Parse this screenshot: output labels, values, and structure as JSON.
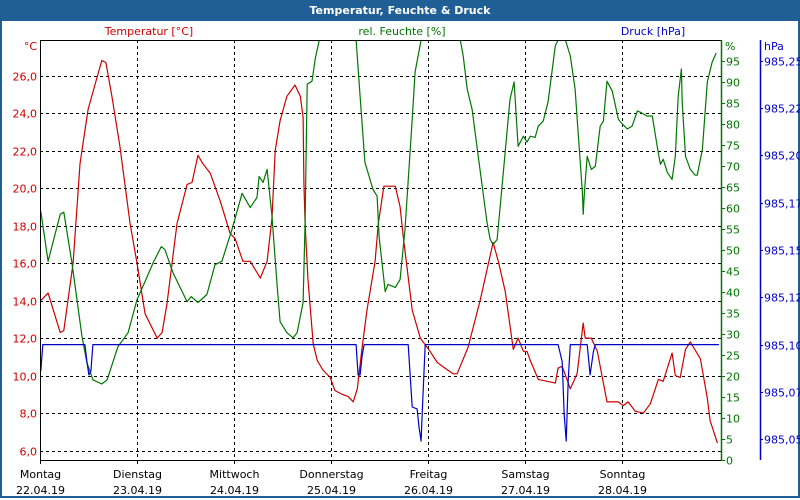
{
  "title": "Temperatur, Feuchte & Druck",
  "colors": {
    "temp": "#cc0000",
    "hum": "#007700",
    "press": "#0000cc",
    "title_bg": "#1f5f96"
  },
  "chart_data": {
    "type": "line",
    "title": "Temperatur, Feuchte & Druck",
    "x_unit": "hours since 22.04.19 00:00",
    "xlim": [
      0,
      168
    ],
    "days": [
      {
        "name": "Montag",
        "date": "22.04.19"
      },
      {
        "name": "Dienstag",
        "date": "23.04.19"
      },
      {
        "name": "Mittwoch",
        "date": "24.04.19"
      },
      {
        "name": "Donnerstag",
        "date": "25.04.19"
      },
      {
        "name": "Freitag",
        "date": "26.04.19"
      },
      {
        "name": "Samstag",
        "date": "27.04.19"
      },
      {
        "name": "Sonntag",
        "date": "28.04.19"
      }
    ],
    "grid": true,
    "axes": {
      "temp": {
        "label": "Temperatur [°C]",
        "unit": "°C",
        "ylim": [
          5.5,
          27.9
        ],
        "ticks": [
          "26,0",
          "24,0",
          "22,0",
          "20,0",
          "18,0",
          "16,0",
          "14,0",
          "12,0",
          "10,0",
          "8,0",
          "6,0"
        ],
        "tick_values": [
          26,
          24,
          22,
          20,
          18,
          16,
          14,
          12,
          10,
          8,
          6
        ]
      },
      "hum": {
        "label": "rel. Feuchte [%]",
        "unit": "%",
        "ylim": [
          0,
          100
        ],
        "ticks": [
          "95",
          "90",
          "85",
          "80",
          "75",
          "70",
          "65",
          "60",
          "55",
          "50",
          "45",
          "40",
          "35",
          "30",
          "25",
          "20",
          "15",
          "10",
          "5",
          "0"
        ],
        "tick_values": [
          95,
          90,
          85,
          80,
          75,
          70,
          65,
          60,
          55,
          50,
          45,
          40,
          35,
          30,
          25,
          20,
          15,
          10,
          5,
          0
        ]
      },
      "press": {
        "label": "Druck [hPa]",
        "unit": "hPa",
        "ylim": [
          985.039,
          985.261
        ],
        "ticks": [
          "985,25",
          "985,22",
          "985,20",
          "985,17",
          "985,15",
          "985,12",
          "985,10",
          "985,07",
          "985,05"
        ],
        "tick_values": [
          985.25,
          985.225,
          985.2,
          985.175,
          985.15,
          985.125,
          985.1,
          985.075,
          985.05
        ]
      }
    },
    "series": [
      {
        "name": "Temperatur",
        "axis": "temp",
        "points": [
          [
            0.2,
            14.0
          ],
          [
            2.0,
            14.4
          ],
          [
            5.0,
            12.3
          ],
          [
            5.9,
            12.4
          ],
          [
            8.2,
            16.0
          ],
          [
            9.9,
            21.3
          ],
          [
            11.9,
            24.2
          ],
          [
            14.1,
            25.9
          ],
          [
            15.3,
            26.8
          ],
          [
            16.3,
            26.7
          ],
          [
            17.8,
            24.9
          ],
          [
            19.8,
            22.2
          ],
          [
            22.3,
            18.1
          ],
          [
            24.0,
            16.0
          ],
          [
            26.0,
            13.3
          ],
          [
            29.0,
            12.0
          ],
          [
            30.2,
            12.3
          ],
          [
            31.4,
            13.8
          ],
          [
            33.9,
            18.1
          ],
          [
            36.4,
            20.2
          ],
          [
            37.6,
            20.3
          ],
          [
            39.1,
            21.75
          ],
          [
            40.3,
            21.3
          ],
          [
            42.1,
            20.8
          ],
          [
            44.6,
            19.3
          ],
          [
            47.0,
            17.6
          ],
          [
            48.3,
            17.3
          ],
          [
            50.2,
            16.1
          ],
          [
            52.0,
            16.1
          ],
          [
            54.5,
            15.2
          ],
          [
            56.2,
            16.1
          ],
          [
            57.4,
            18.4
          ],
          [
            58.2,
            22.0
          ],
          [
            59.4,
            23.6
          ],
          [
            61.1,
            24.9
          ],
          [
            63.1,
            25.5
          ],
          [
            64.4,
            24.9
          ],
          [
            65.1,
            23.8
          ],
          [
            65.3,
            20.3
          ],
          [
            65.6,
            18.1
          ],
          [
            66.3,
            15.1
          ],
          [
            67.6,
            11.7
          ],
          [
            68.6,
            10.8
          ],
          [
            70.0,
            10.3
          ],
          [
            71.8,
            9.9
          ],
          [
            73.0,
            9.2
          ],
          [
            74.8,
            9.0
          ],
          [
            76.2,
            8.9
          ],
          [
            77.5,
            8.6
          ],
          [
            78.5,
            9.3
          ],
          [
            79.7,
            11.5
          ],
          [
            80.9,
            13.5
          ],
          [
            82.9,
            16.1
          ],
          [
            83.7,
            18.1
          ],
          [
            85.1,
            20.1
          ],
          [
            87.9,
            20.1
          ],
          [
            89.1,
            19.0
          ],
          [
            89.9,
            17.4
          ],
          [
            92.1,
            13.5
          ],
          [
            94.1,
            12.0
          ],
          [
            96.5,
            11.3
          ],
          [
            98.3,
            10.7
          ],
          [
            100.2,
            10.4
          ],
          [
            102.2,
            10.1
          ],
          [
            103.2,
            10.1
          ],
          [
            105.9,
            11.5
          ],
          [
            108.9,
            14.0
          ],
          [
            112.1,
            17.1
          ],
          [
            113.4,
            16.1
          ],
          [
            115.1,
            14.5
          ],
          [
            117.1,
            11.4
          ],
          [
            118.3,
            12.0
          ],
          [
            119.6,
            11.3
          ],
          [
            120.5,
            11.3
          ],
          [
            121.3,
            10.8
          ],
          [
            123.3,
            9.8
          ],
          [
            125.5,
            9.7
          ],
          [
            127.5,
            9.6
          ],
          [
            128.2,
            10.4
          ],
          [
            129.2,
            10.5
          ],
          [
            131.2,
            9.3
          ],
          [
            132.9,
            10.1
          ],
          [
            134.4,
            12.8
          ],
          [
            134.9,
            12.0
          ],
          [
            136.4,
            12.0
          ],
          [
            137.9,
            11.3
          ],
          [
            140.3,
            8.6
          ],
          [
            143.1,
            8.6
          ],
          [
            144.3,
            8.4
          ],
          [
            145.5,
            8.6
          ],
          [
            147.3,
            8.1
          ],
          [
            149.3,
            8.0
          ],
          [
            151.0,
            8.5
          ],
          [
            153.0,
            9.8
          ],
          [
            154.2,
            9.7
          ],
          [
            156.4,
            11.2
          ],
          [
            157.2,
            10.0
          ],
          [
            158.4,
            9.9
          ],
          [
            159.7,
            11.4
          ],
          [
            160.9,
            11.8
          ],
          [
            163.4,
            10.9
          ],
          [
            165.1,
            8.8
          ],
          [
            165.8,
            7.6
          ],
          [
            167.6,
            6.4
          ]
        ]
      },
      {
        "name": "rel. Feuchte",
        "axis": "hum",
        "points": [
          [
            0.2,
            59.2
          ],
          [
            2.0,
            47.3
          ],
          [
            5.0,
            58.5
          ],
          [
            5.9,
            59.0
          ],
          [
            7.9,
            47.0
          ],
          [
            10.4,
            29.4
          ],
          [
            11.6,
            23.2
          ],
          [
            13.1,
            19.1
          ],
          [
            15.3,
            18.1
          ],
          [
            16.6,
            19.1
          ],
          [
            19.3,
            27.0
          ],
          [
            21.8,
            30.3
          ],
          [
            24.0,
            38.2
          ],
          [
            26.0,
            42.5
          ],
          [
            28.0,
            47.0
          ],
          [
            30.0,
            50.8
          ],
          [
            30.9,
            50.1
          ],
          [
            32.9,
            44.6
          ],
          [
            36.4,
            37.7
          ],
          [
            37.4,
            38.9
          ],
          [
            39.1,
            37.5
          ],
          [
            41.3,
            39.4
          ],
          [
            43.3,
            46.5
          ],
          [
            45.0,
            47.3
          ],
          [
            47.5,
            54.9
          ],
          [
            50.0,
            63.5
          ],
          [
            52.0,
            60.1
          ],
          [
            53.7,
            62.5
          ],
          [
            54.2,
            67.5
          ],
          [
            55.2,
            66.1
          ],
          [
            56.2,
            69.2
          ],
          [
            57.4,
            58.0
          ],
          [
            58.7,
            41.3
          ],
          [
            59.4,
            32.9
          ],
          [
            61.1,
            30.3
          ],
          [
            62.6,
            29.1
          ],
          [
            63.6,
            30.3
          ],
          [
            65.1,
            37.5
          ],
          [
            65.6,
            56.6
          ],
          [
            66.1,
            89.5
          ],
          [
            67.3,
            90.2
          ],
          [
            68.1,
            95.5
          ],
          [
            69.1,
            100
          ],
          [
            78.2,
            100
          ],
          [
            79.2,
            86.6
          ],
          [
            80.4,
            70.9
          ],
          [
            82.4,
            64.4
          ],
          [
            83.4,
            62.8
          ],
          [
            83.9,
            53.2
          ],
          [
            85.4,
            40.1
          ],
          [
            86.1,
            41.8
          ],
          [
            87.9,
            41.1
          ],
          [
            89.1,
            43.0
          ],
          [
            90.3,
            54.9
          ],
          [
            92.1,
            81.1
          ],
          [
            92.8,
            92.4
          ],
          [
            94.3,
            100
          ],
          [
            104.0,
            100
          ],
          [
            104.7,
            96.2
          ],
          [
            105.7,
            88.3
          ],
          [
            106.9,
            83.5
          ],
          [
            108.2,
            74.0
          ],
          [
            109.4,
            65.2
          ],
          [
            110.6,
            56.6
          ],
          [
            111.4,
            52.5
          ],
          [
            112.1,
            51.3
          ],
          [
            113.1,
            52.5
          ],
          [
            114.4,
            66.1
          ],
          [
            116.3,
            85.9
          ],
          [
            117.3,
            90.0
          ],
          [
            118.3,
            74.7
          ],
          [
            119.6,
            77.1
          ],
          [
            120.5,
            75.7
          ],
          [
            121.3,
            77.1
          ],
          [
            122.5,
            76.8
          ],
          [
            123.3,
            79.5
          ],
          [
            124.5,
            80.7
          ],
          [
            125.7,
            85.2
          ],
          [
            127.5,
            98.6
          ],
          [
            128.2,
            100
          ],
          [
            130.0,
            100
          ],
          [
            131.2,
            96.2
          ],
          [
            132.4,
            88.3
          ],
          [
            133.2,
            77.1
          ],
          [
            134.2,
            63.7
          ],
          [
            134.4,
            58.5
          ],
          [
            134.7,
            63.7
          ],
          [
            135.4,
            72.3
          ],
          [
            136.4,
            69.2
          ],
          [
            137.4,
            69.9
          ],
          [
            138.6,
            79.5
          ],
          [
            139.4,
            80.7
          ],
          [
            140.3,
            90.2
          ],
          [
            141.6,
            87.8
          ],
          [
            143.1,
            81.1
          ],
          [
            144.1,
            80.0
          ],
          [
            145.3,
            78.8
          ],
          [
            146.5,
            79.5
          ],
          [
            147.8,
            83.1
          ],
          [
            148.5,
            82.8
          ],
          [
            150.2,
            81.9
          ],
          [
            151.5,
            81.9
          ],
          [
            152.7,
            74.7
          ],
          [
            153.5,
            70.4
          ],
          [
            154.2,
            71.6
          ],
          [
            155.2,
            68.5
          ],
          [
            156.4,
            66.8
          ],
          [
            157.2,
            72.3
          ],
          [
            157.9,
            86.6
          ],
          [
            158.7,
            93.1
          ],
          [
            158.9,
            85.2
          ],
          [
            159.7,
            72.3
          ],
          [
            160.9,
            69.2
          ],
          [
            162.1,
            67.8
          ],
          [
            162.6,
            67.8
          ],
          [
            163.9,
            74.0
          ],
          [
            165.1,
            90.0
          ],
          [
            166.3,
            94.7
          ],
          [
            167.3,
            96.9
          ]
        ]
      },
      {
        "name": "Druck",
        "axis": "press",
        "points": [
          [
            0.2,
            985.086
          ],
          [
            0.7,
            985.1
          ],
          [
            11.1,
            985.1
          ],
          [
            11.6,
            985.091
          ],
          [
            12.1,
            985.084
          ],
          [
            12.6,
            985.086
          ],
          [
            13.1,
            985.1
          ],
          [
            78.2,
            985.1
          ],
          [
            78.7,
            985.084
          ],
          [
            79.2,
            985.084
          ],
          [
            79.7,
            985.094
          ],
          [
            80.2,
            985.1
          ],
          [
            91.1,
            985.1
          ],
          [
            92.1,
            985.067
          ],
          [
            93.3,
            985.066
          ],
          [
            93.8,
            985.056
          ],
          [
            94.3,
            985.049
          ],
          [
            94.6,
            985.065
          ],
          [
            95.3,
            985.1
          ],
          [
            128.2,
            985.1
          ],
          [
            129.2,
            985.091
          ],
          [
            129.7,
            985.063
          ],
          [
            130.2,
            985.049
          ],
          [
            130.7,
            985.081
          ],
          [
            131.2,
            985.1
          ],
          [
            135.4,
            985.1
          ],
          [
            136.1,
            985.084
          ],
          [
            136.9,
            985.096
          ],
          [
            137.4,
            985.1
          ],
          [
            168,
            985.1
          ]
        ]
      }
    ]
  }
}
